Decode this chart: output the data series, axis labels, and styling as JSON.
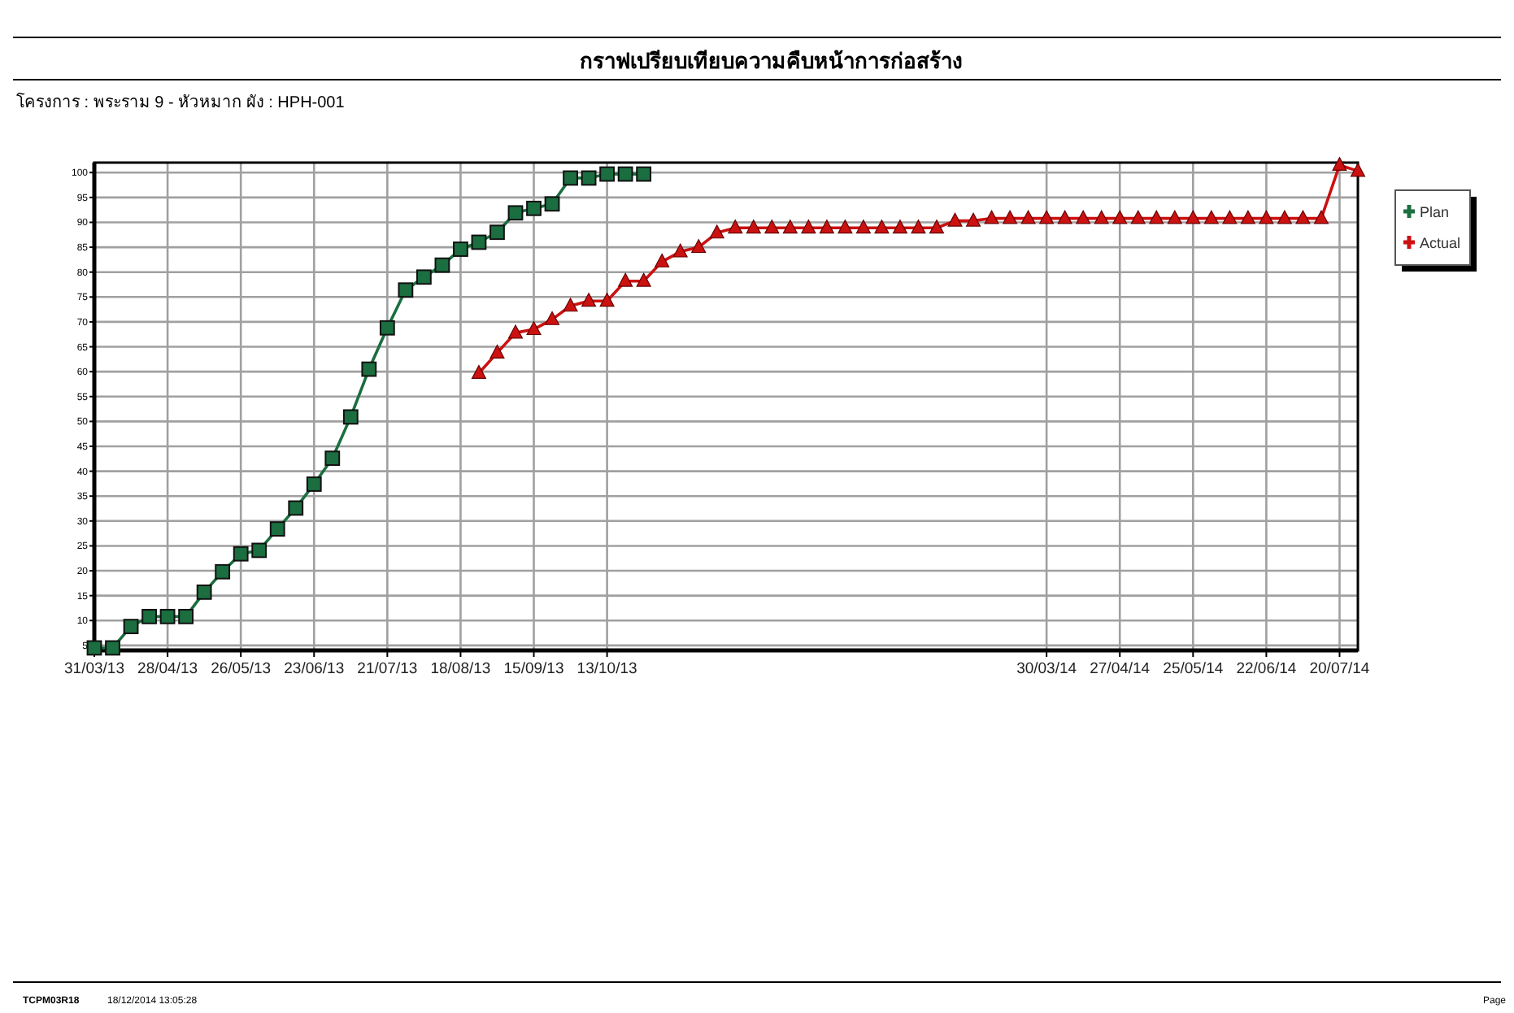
{
  "chart_data": {
    "type": "line",
    "title": "กราฟเปรียบเทียบความคืบหน้าการก่อสร้าง",
    "subtitle": "โครงการ :   พระราม 9 - หัวหมาก    ผัง :   HPH-001",
    "annotations": [
      "TCPM03R18",
      "18/12/2014 13:05:28",
      "Page"
    ],
    "x": [
      "2013-03-31",
      "2013-04-07",
      "2013-04-14",
      "2013-04-21",
      "2013-04-28",
      "2013-05-05",
      "2013-05-12",
      "2013-05-19",
      "2013-05-26",
      "2013-06-02",
      "2013-06-09",
      "2013-06-16",
      "2013-06-23",
      "2013-06-30",
      "2013-07-07",
      "2013-07-14",
      "2013-07-21",
      "2013-07-28",
      "2013-08-04",
      "2013-08-11",
      "2013-08-18",
      "2013-08-25",
      "2013-09-01",
      "2013-09-08",
      "2013-09-15",
      "2013-09-22",
      "2013-09-29",
      "2013-10-06",
      "2013-10-13",
      "2013-10-20",
      "2013-10-27",
      "2013-11-03",
      "2013-11-10",
      "2013-11-17",
      "2013-11-24",
      "2013-12-01",
      "2013-12-08",
      "2013-12-15",
      "2013-12-22",
      "2013-12-29",
      "2014-01-05",
      "2014-01-12",
      "2014-01-19",
      "2014-01-26",
      "2014-02-02",
      "2014-02-09",
      "2014-02-16",
      "2014-02-23",
      "2014-03-02",
      "2014-03-09",
      "2014-03-16",
      "2014-03-23",
      "2014-03-30",
      "2014-04-06",
      "2014-04-13",
      "2014-04-20",
      "2014-04-27",
      "2014-05-04",
      "2014-05-11",
      "2014-05-18",
      "2014-05-25",
      "2014-06-01",
      "2014-06-08",
      "2014-06-15",
      "2014-06-22",
      "2014-06-29",
      "2014-07-06",
      "2014-07-13",
      "2014-07-20",
      "2014-07-27"
    ],
    "series": [
      {
        "name": "Plan",
        "color": "#1b6e3f",
        "marker": "square",
        "values": [
          4.5,
          4.5,
          8.8,
          10.8,
          10.8,
          10.8,
          15.7,
          19.8,
          23.4,
          24.1,
          28.4,
          32.6,
          37.4,
          42.6,
          50.9,
          60.5,
          68.8,
          76.4,
          79.0,
          81.4,
          84.6,
          86.0,
          88.0,
          91.9,
          92.8,
          93.7,
          98.9,
          98.9,
          99.7,
          99.7,
          99.7,
          null,
          null,
          null,
          null,
          null,
          null,
          null,
          null,
          null,
          null,
          null,
          null,
          null,
          null,
          null,
          null,
          null,
          null,
          null,
          null,
          null,
          null,
          null,
          null,
          null,
          null,
          null,
          null,
          null,
          null,
          null,
          null,
          null,
          null,
          null,
          null,
          null,
          null,
          null
        ]
      },
      {
        "name": "Actual",
        "color": "#cc1111",
        "marker": "triangle",
        "values": [
          null,
          null,
          null,
          null,
          null,
          null,
          null,
          null,
          null,
          null,
          null,
          null,
          null,
          null,
          null,
          null,
          null,
          null,
          null,
          null,
          null,
          59.7,
          63.8,
          67.8,
          68.5,
          70.5,
          73.2,
          74.2,
          74.2,
          78.2,
          78.2,
          82.1,
          84.1,
          85.0,
          87.9,
          88.9,
          88.9,
          88.9,
          88.9,
          88.9,
          88.9,
          88.9,
          88.9,
          88.9,
          88.9,
          88.9,
          88.9,
          90.3,
          90.3,
          90.8,
          90.8,
          90.8,
          90.8,
          90.8,
          90.8,
          90.8,
          90.8,
          90.8,
          90.8,
          90.8,
          90.8,
          90.8,
          90.8,
          90.8,
          90.8,
          90.8,
          90.8,
          90.8,
          101.5,
          100.3
        ]
      }
    ],
    "xlim": [
      "2013-03-31",
      "2014-07-27"
    ],
    "xticks": [
      {
        "value": "2013-03-31",
        "label": "31/03/13"
      },
      {
        "value": "2013-04-28",
        "label": "28/04/13"
      },
      {
        "value": "2013-05-26",
        "label": "26/05/13"
      },
      {
        "value": "2013-06-23",
        "label": "23/06/13"
      },
      {
        "value": "2013-07-21",
        "label": "21/07/13"
      },
      {
        "value": "2013-08-18",
        "label": "18/08/13"
      },
      {
        "value": "2013-09-15",
        "label": "15/09/13"
      },
      {
        "value": "2013-10-13",
        "label": "13/10/13"
      },
      {
        "value": "2014-03-30",
        "label": "30/03/14"
      },
      {
        "value": "2014-04-27",
        "label": "27/04/14"
      },
      {
        "value": "2014-05-25",
        "label": "25/05/14"
      },
      {
        "value": "2014-06-22",
        "label": "22/06/14"
      },
      {
        "value": "2014-07-20",
        "label": "20/07/14"
      }
    ],
    "ylim": [
      4,
      102
    ],
    "yticks": [
      5,
      10,
      15,
      20,
      25,
      30,
      35,
      40,
      45,
      50,
      55,
      60,
      65,
      70,
      75,
      80,
      85,
      90,
      95,
      100
    ],
    "grid": true,
    "legend": "top right",
    "line_style": "solid"
  }
}
